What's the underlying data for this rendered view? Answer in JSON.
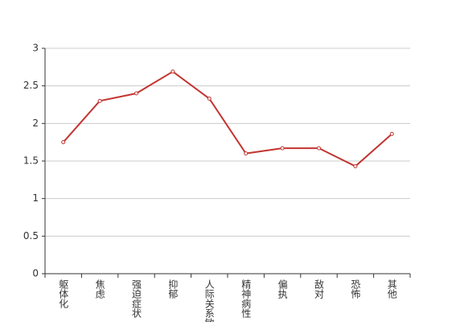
{
  "chart_data": {
    "type": "line",
    "categories": [
      "躯体化",
      "焦虑",
      "强迫症状",
      "抑郁",
      "人际关系敏感",
      "精神病性",
      "偏执",
      "敌对",
      "恐怖",
      "其他"
    ],
    "series": [
      {
        "name": "",
        "color": "#c23531",
        "values": [
          1.75,
          2.3,
          2.4,
          2.69,
          2.33,
          1.6,
          1.67,
          1.67,
          1.43,
          1.86
        ]
      }
    ],
    "ylim": [
      0,
      3
    ],
    "yticks": [
      0,
      0.5,
      1,
      1.5,
      2,
      2.5,
      3
    ],
    "grid": true
  }
}
